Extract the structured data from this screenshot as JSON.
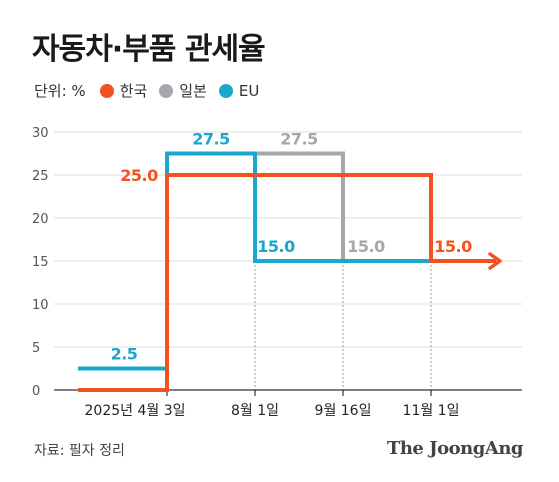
{
  "title": "자동차·부품 관세율",
  "unit_label": "단위: %",
  "source": "자료: 필자 정리",
  "brand": "The JoongAng",
  "colors": {
    "korea": "#f4511e",
    "japan": "#a8a6ad",
    "eu": "#1aa7cc",
    "grid": "#dddddd",
    "text": "#333333"
  },
  "chart_data": {
    "type": "line",
    "step": true,
    "ylim": [
      0,
      30
    ],
    "yticks": [
      "0",
      "5",
      "10",
      "15",
      "20",
      "25",
      "30"
    ],
    "x_ticks": [
      "2025년 4월 3일",
      "8월 1일",
      "9월 16일",
      "11월 1일"
    ],
    "series": [
      {
        "name": "한국",
        "color": "#f4511e",
        "values": [
          0,
          25.0,
          25.0,
          25.0,
          15.0
        ]
      },
      {
        "name": "일본",
        "color": "#a8a6ad",
        "values": [
          0,
          27.5,
          27.5,
          15.0,
          15.0
        ]
      },
      {
        "name": "EU",
        "color": "#1aa7cc",
        "values": [
          2.5,
          27.5,
          15.0,
          15.0,
          15.0
        ]
      }
    ],
    "data_labels": [
      "2.5",
      "27.5",
      "27.5",
      "25.0",
      "15.0",
      "15.0",
      "15.0"
    ]
  }
}
